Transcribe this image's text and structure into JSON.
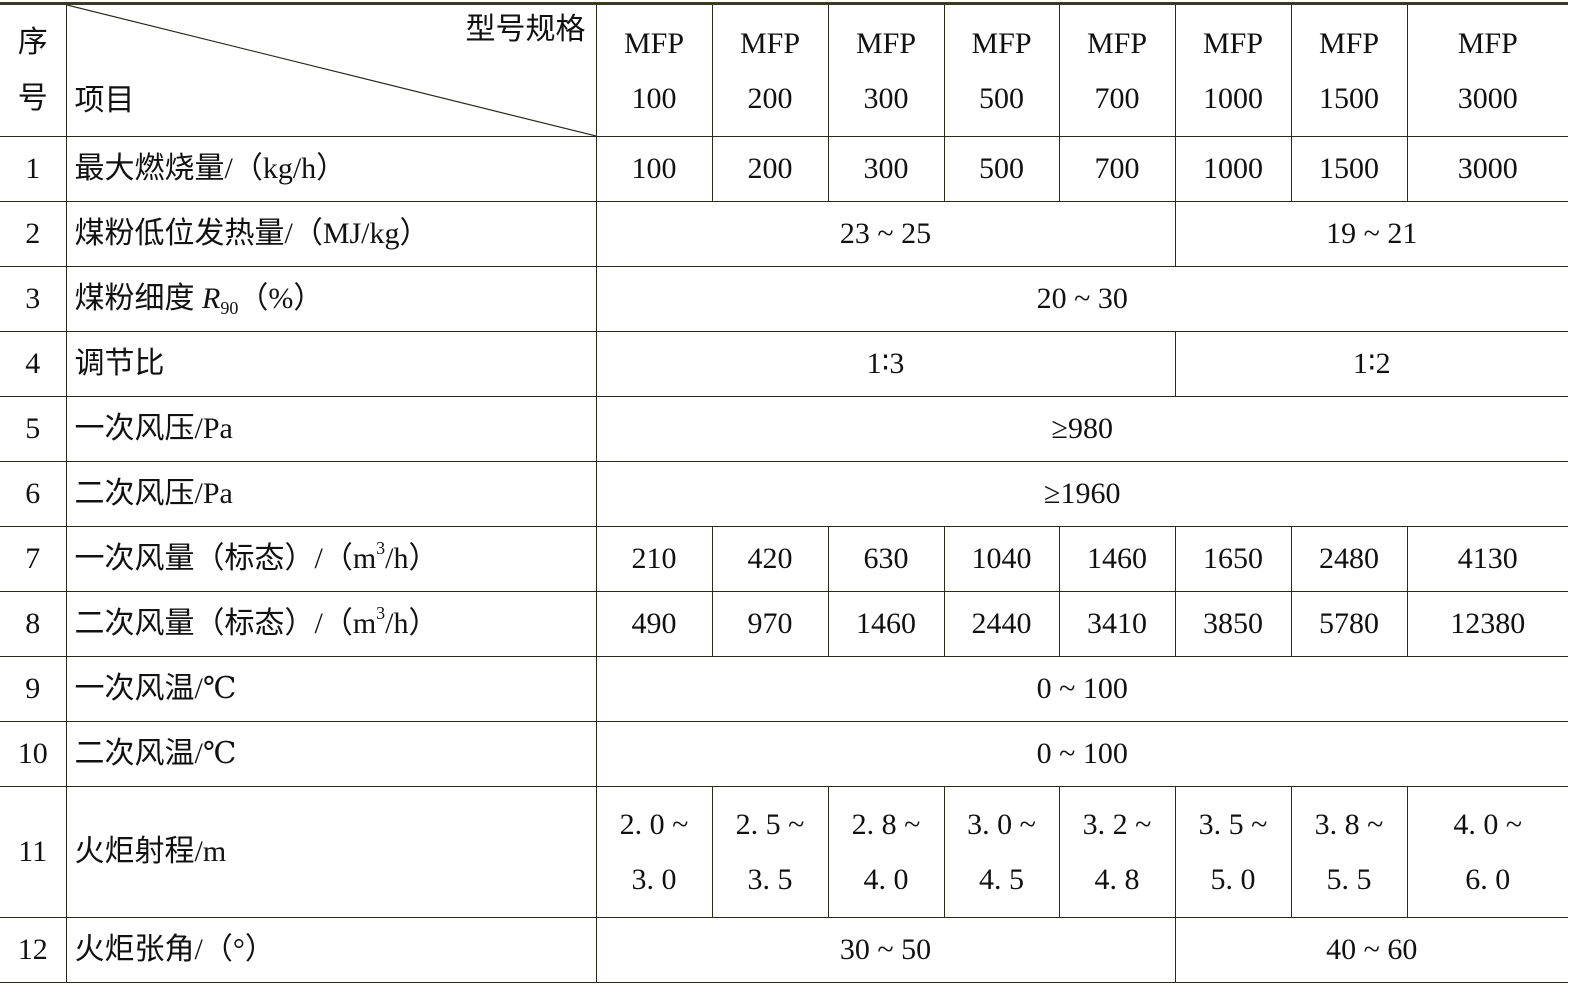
{
  "header": {
    "index_label": "序\n号",
    "spec_label": "型号规格",
    "item_label": "项目",
    "models": [
      "MFP\n100",
      "MFP\n200",
      "MFP\n300",
      "MFP\n500",
      "MFP\n700",
      "MFP\n1000",
      "MFP\n1500",
      "MFP\n3000"
    ]
  },
  "rows": [
    {
      "idx": "1",
      "label": {
        "text": "最大燃烧量/（kg/h）"
      },
      "cells": [
        {
          "v": "100",
          "span": 1
        },
        {
          "v": "200",
          "span": 1
        },
        {
          "v": "300",
          "span": 1
        },
        {
          "v": "500",
          "span": 1
        },
        {
          "v": "700",
          "span": 1
        },
        {
          "v": "1000",
          "span": 1
        },
        {
          "v": "1500",
          "span": 1
        },
        {
          "v": "3000",
          "span": 1
        }
      ]
    },
    {
      "idx": "2",
      "label": {
        "text": "煤粉低位发热量/（MJ/kg）"
      },
      "cells": [
        {
          "v": "23 ~ 25",
          "span": 5
        },
        {
          "v": "19 ~ 21",
          "span": 3
        }
      ]
    },
    {
      "idx": "3",
      "label": {
        "text": "煤粉细度 ",
        "italic": "R",
        "sub": "90",
        "tail": "（%）"
      },
      "cells": [
        {
          "v": "20 ~ 30",
          "span": 8
        }
      ]
    },
    {
      "idx": "4",
      "label": {
        "text": "调节比"
      },
      "cells": [
        {
          "v": "1∶3",
          "span": 5
        },
        {
          "v": "1∶2",
          "span": 3
        }
      ]
    },
    {
      "idx": "5",
      "label": {
        "text": "一次风压/Pa"
      },
      "cells": [
        {
          "v": "≥980",
          "span": 8
        }
      ]
    },
    {
      "idx": "6",
      "label": {
        "text": "二次风压/Pa"
      },
      "cells": [
        {
          "v": "≥1960",
          "span": 8
        }
      ]
    },
    {
      "idx": "7",
      "label": {
        "text": "一次风量（标态）/（m",
        "sup": "3",
        "tail": "/h）"
      },
      "cells": [
        {
          "v": "210",
          "span": 1
        },
        {
          "v": "420",
          "span": 1
        },
        {
          "v": "630",
          "span": 1
        },
        {
          "v": "1040",
          "span": 1
        },
        {
          "v": "1460",
          "span": 1
        },
        {
          "v": "1650",
          "span": 1
        },
        {
          "v": "2480",
          "span": 1
        },
        {
          "v": "4130",
          "span": 1
        }
      ]
    },
    {
      "idx": "8",
      "label": {
        "text": "二次风量（标态）/（m",
        "sup": "3",
        "tail": "/h）"
      },
      "cells": [
        {
          "v": "490",
          "span": 1
        },
        {
          "v": "970",
          "span": 1
        },
        {
          "v": "1460",
          "span": 1
        },
        {
          "v": "2440",
          "span": 1
        },
        {
          "v": "3410",
          "span": 1
        },
        {
          "v": "3850",
          "span": 1
        },
        {
          "v": "5780",
          "span": 1
        },
        {
          "v": "12380",
          "span": 1
        }
      ]
    },
    {
      "idx": "9",
      "label": {
        "text": "一次风温/℃"
      },
      "cells": [
        {
          "v": "0 ~ 100",
          "span": 8
        }
      ]
    },
    {
      "idx": "10",
      "label": {
        "text": "二次风温/℃"
      },
      "cells": [
        {
          "v": "0 ~ 100",
          "span": 8
        }
      ]
    },
    {
      "idx": "11",
      "label": {
        "text": "火炬射程/m"
      },
      "tall": true,
      "cells": [
        {
          "v": "2. 0 ~\n3. 0",
          "span": 1
        },
        {
          "v": "2. 5 ~\n3. 5",
          "span": 1
        },
        {
          "v": "2. 8 ~\n4. 0",
          "span": 1
        },
        {
          "v": "3. 0 ~\n4. 5",
          "span": 1
        },
        {
          "v": "3. 2 ~\n4. 8",
          "span": 1
        },
        {
          "v": "3. 5 ~\n5. 0",
          "span": 1
        },
        {
          "v": "3. 8 ~\n5. 5",
          "span": 1
        },
        {
          "v": "4. 0 ~\n6. 0",
          "span": 1
        }
      ]
    },
    {
      "idx": "12",
      "label": {
        "text": "火炬张角/（°）"
      },
      "cells": [
        {
          "v": "30 ~ 50",
          "span": 5
        },
        {
          "v": "40 ~ 60",
          "span": 3
        }
      ]
    }
  ]
}
